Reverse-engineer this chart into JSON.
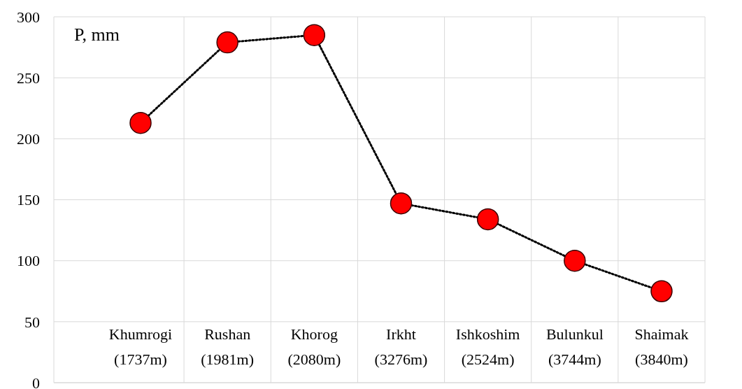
{
  "chart_data": {
    "type": "line",
    "ylabel": "P, mm",
    "categories": [
      "Khumrogi (1737m)",
      "Rushan (1981m)",
      "Khorog (2080m)",
      "Irkht (3276m)",
      "Ishkoshim (2524m)",
      "Bulunkul (3744m)",
      "Shaimak (3840m)"
    ],
    "series": [
      {
        "color": "#ff0000",
        "values": [
          213,
          279,
          285,
          147,
          134,
          100,
          75
        ]
      }
    ],
    "ylim": [
      0,
      300
    ],
    "yticks": [
      0,
      50,
      100,
      150,
      200,
      250,
      300
    ],
    "grid": true,
    "marker": "circle",
    "line_style": "dotted"
  }
}
